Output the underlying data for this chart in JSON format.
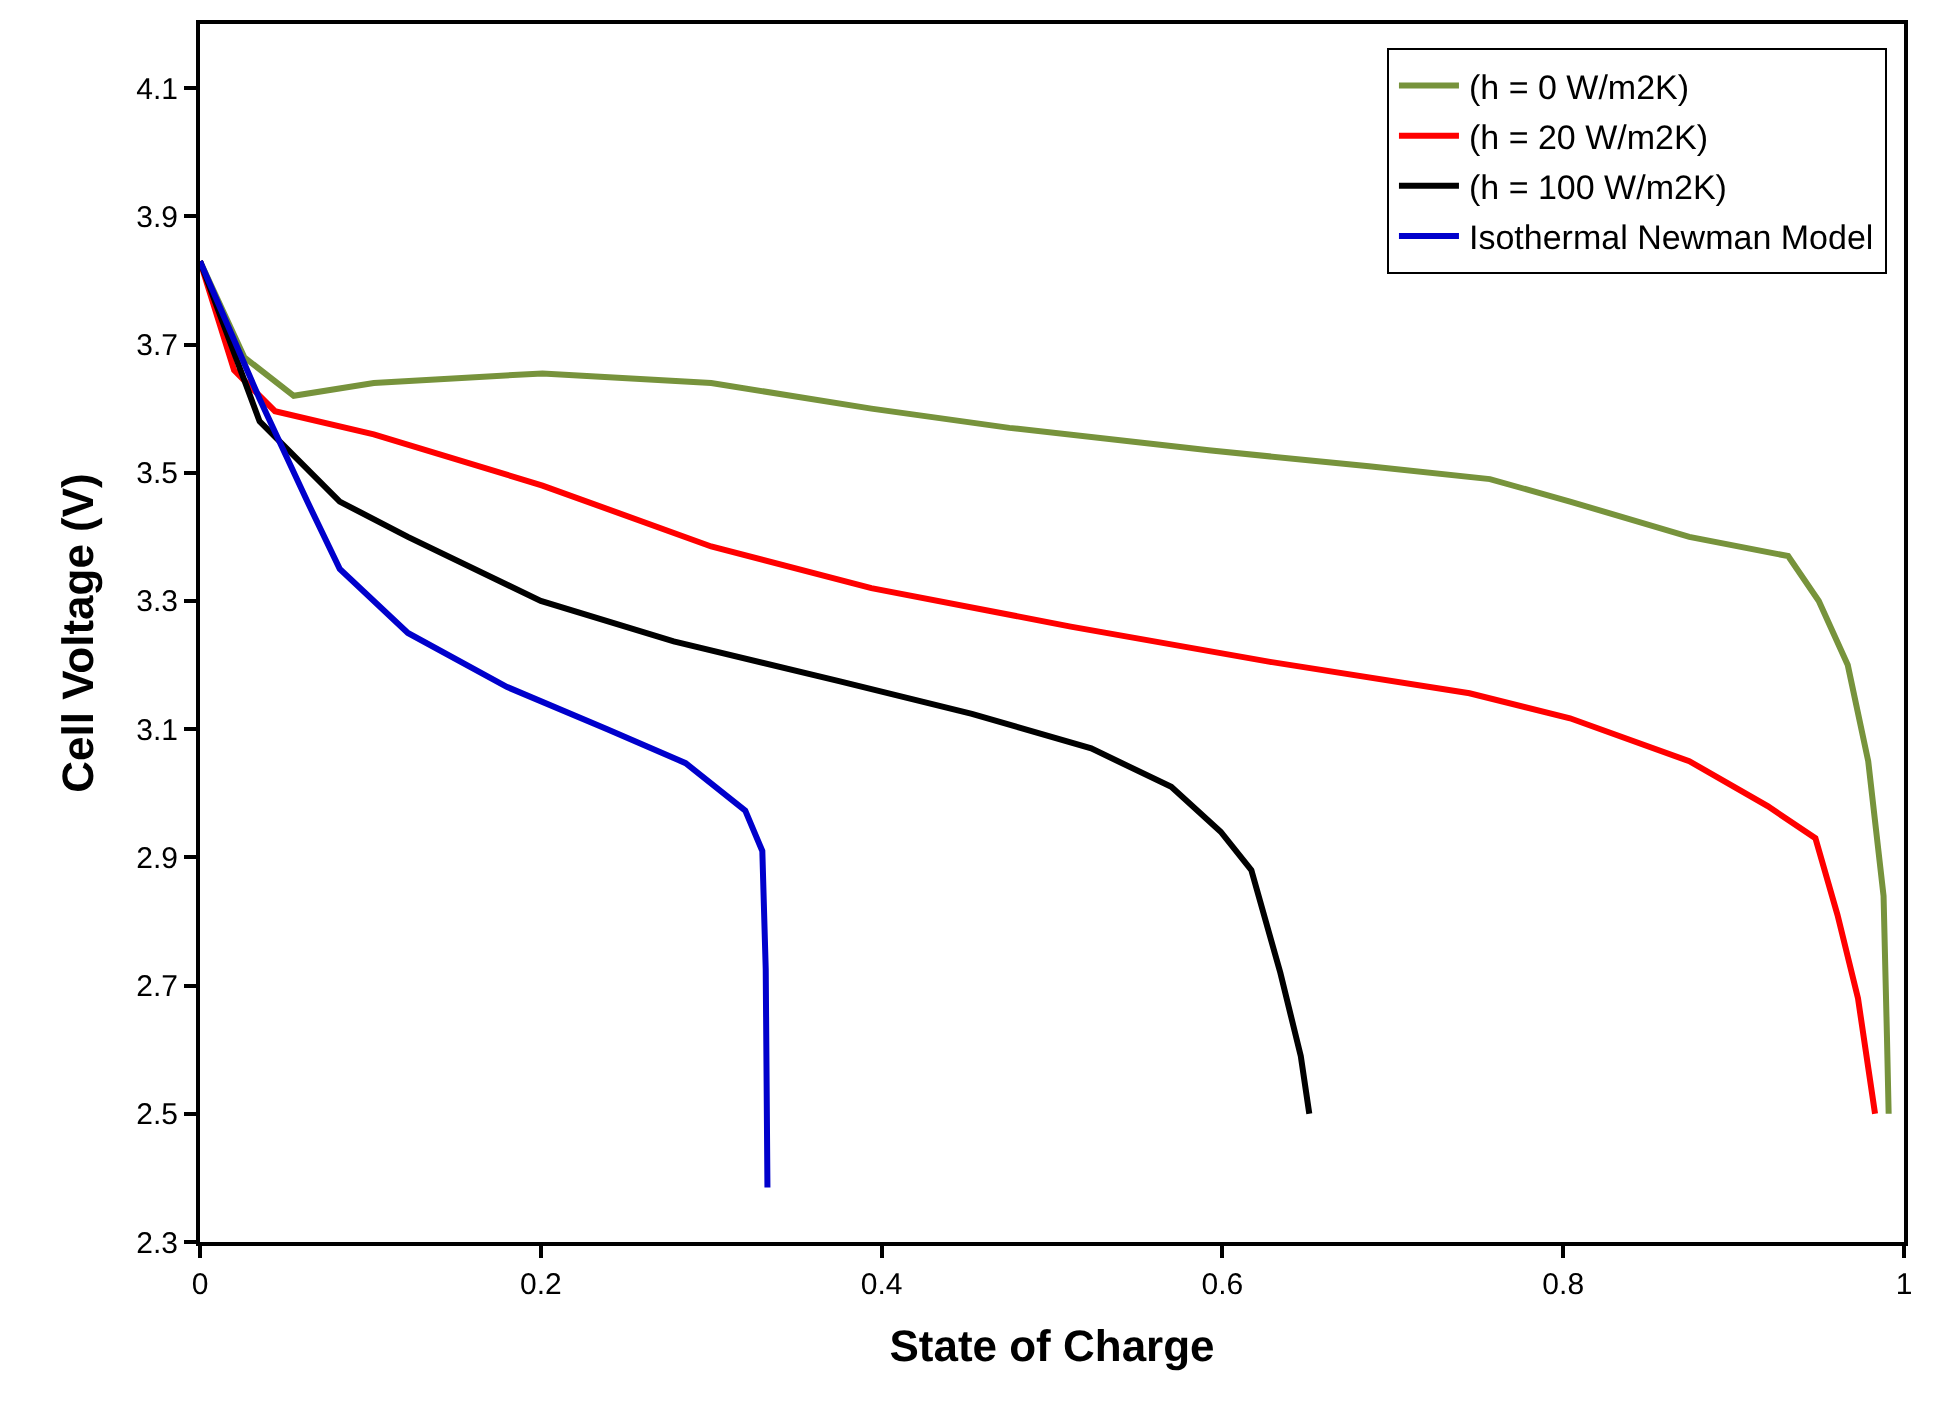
{
  "chart_data": {
    "type": "line",
    "xlabel": "State of Charge",
    "ylabel": "Cell Voltage (V)",
    "xlim": [
      0,
      1
    ],
    "xticks": [
      0,
      0.2,
      0.4,
      0.6,
      0.8,
      1
    ],
    "ylim": [
      2.3,
      4.2
    ],
    "yticks": [
      2.3,
      2.5,
      2.7,
      2.9,
      3.1,
      3.3,
      3.5,
      3.7,
      3.9,
      4.1
    ],
    "legend": "top right",
    "marker": "none",
    "line_style": "solid",
    "series": [
      {
        "name": "(h = 0 W/m2K)",
        "color": "#77933c",
        "x": [
          0,
          0.026,
          0.055,
          0.102,
          0.201,
          0.3,
          0.394,
          0.475,
          0.592,
          0.686,
          0.757,
          0.804,
          0.874,
          0.932,
          0.95,
          0.967,
          0.979,
          0.988,
          0.99,
          0.991
        ],
        "values": [
          3.83,
          3.68,
          3.62,
          3.64,
          3.655,
          3.64,
          3.6,
          3.57,
          3.535,
          3.51,
          3.49,
          3.455,
          3.4,
          3.37,
          3.3,
          3.2,
          3.05,
          2.84,
          2.62,
          2.5
        ]
      },
      {
        "name": "(h = 20 W/m2K)",
        "color": "#ff0000",
        "x": [
          0,
          0.02,
          0.044,
          0.102,
          0.201,
          0.3,
          0.394,
          0.511,
          0.628,
          0.745,
          0.804,
          0.874,
          0.92,
          0.948,
          0.961,
          0.973,
          0.983
        ],
        "values": [
          3.83,
          3.66,
          3.596,
          3.56,
          3.48,
          3.385,
          3.32,
          3.26,
          3.205,
          3.156,
          3.117,
          3.05,
          2.98,
          2.93,
          2.81,
          2.68,
          2.5
        ]
      },
      {
        "name": "(h = 100 W/m2K)",
        "color": "#000000",
        "x": [
          0,
          0.035,
          0.082,
          0.122,
          0.2,
          0.278,
          0.375,
          0.453,
          0.523,
          0.57,
          0.599,
          0.617,
          0.634,
          0.646,
          0.651
        ],
        "values": [
          3.83,
          3.58,
          3.455,
          3.4,
          3.3,
          3.237,
          3.175,
          3.124,
          3.07,
          3.01,
          2.94,
          2.88,
          2.72,
          2.59,
          2.5
        ]
      },
      {
        "name": "Isothermal Newman Model",
        "color": "#0000cc",
        "x": [
          0,
          0.035,
          0.063,
          0.082,
          0.122,
          0.18,
          0.239,
          0.285,
          0.32,
          0.33,
          0.332,
          0.333
        ],
        "values": [
          3.83,
          3.615,
          3.455,
          3.35,
          3.25,
          3.166,
          3.1,
          3.047,
          2.973,
          2.91,
          2.726,
          2.385
        ]
      }
    ]
  }
}
